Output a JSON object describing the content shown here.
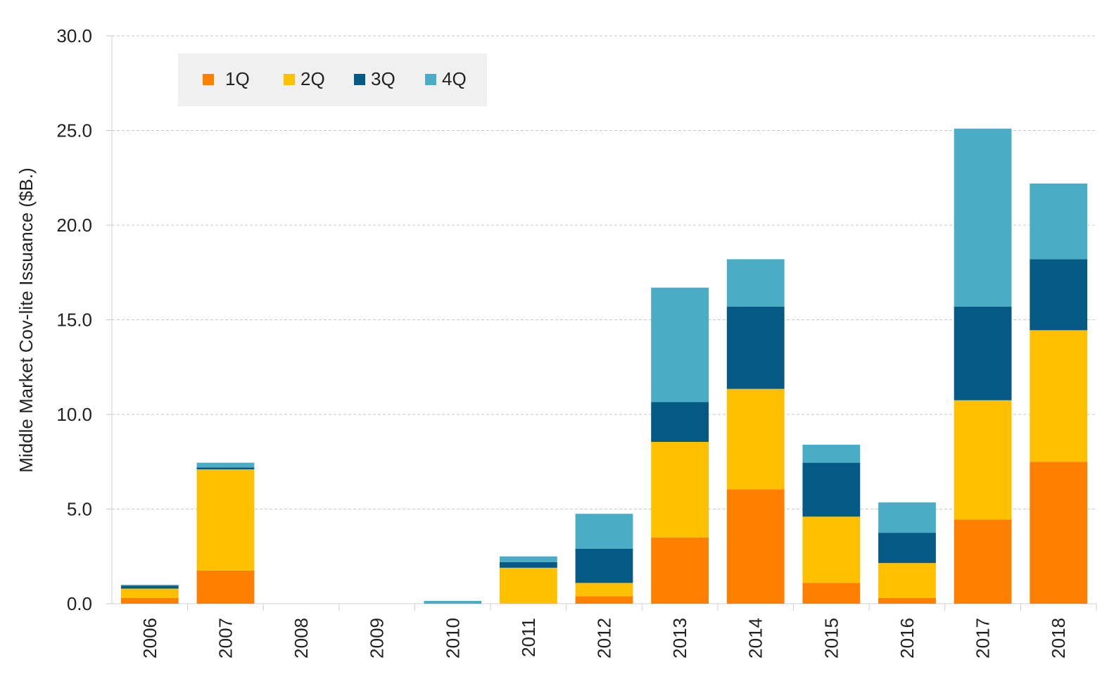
{
  "chart_data": {
    "type": "bar",
    "stacked": true,
    "title": "",
    "xlabel": "",
    "ylabel": "Middle Market Cov-lite Issuance ($B.)",
    "ylim": [
      0,
      30
    ],
    "yticks": [
      "0.0",
      "5.0",
      "10.0",
      "15.0",
      "20.0",
      "25.0",
      "30.0"
    ],
    "grid": true,
    "legend_position": "top-left",
    "categories": [
      "2006",
      "2007",
      "2008",
      "2009",
      "2010",
      "2011",
      "2012",
      "2013",
      "2014",
      "2015",
      "2016",
      "2017",
      "2018"
    ],
    "series": [
      {
        "name": "1Q",
        "color": "#FF8000",
        "values": [
          0.3,
          1.75,
          0,
          0,
          0,
          0,
          0.4,
          3.5,
          6.05,
          1.1,
          0.3,
          4.45,
          7.5
        ]
      },
      {
        "name": "2Q",
        "color": "#FFC000",
        "values": [
          0.5,
          5.35,
          0,
          0,
          0,
          1.9,
          0.7,
          5.05,
          5.3,
          3.5,
          1.85,
          6.3,
          6.95
        ]
      },
      {
        "name": "3Q",
        "color": "#045A85",
        "values": [
          0.15,
          0.1,
          0,
          0,
          0,
          0.3,
          1.8,
          2.1,
          4.35,
          2.85,
          1.6,
          4.95,
          3.75
        ]
      },
      {
        "name": "4Q",
        "color": "#4BACC6",
        "values": [
          0.05,
          0.25,
          0,
          0,
          0.15,
          0.3,
          1.85,
          6.05,
          2.5,
          0.95,
          1.6,
          9.4,
          4.0
        ]
      }
    ]
  }
}
